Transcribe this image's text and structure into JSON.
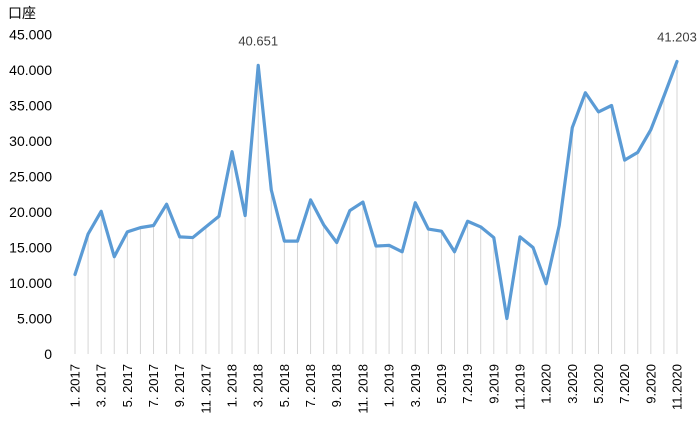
{
  "chart_data": {
    "type": "line",
    "title": "",
    "xlabel": "",
    "ylabel": "",
    "y_unit_label": "口座",
    "ylim": [
      0,
      45000
    ],
    "y_ticks": [
      0,
      5000,
      10000,
      15000,
      20000,
      25000,
      30000,
      35000,
      40000,
      45000
    ],
    "y_tick_labels": [
      "0",
      "5.000",
      "10.000",
      "15.000",
      "20.000",
      "25.000",
      "30.000",
      "35.000",
      "40.000",
      "45.000"
    ],
    "x_tick_labels": [
      "1. 2017",
      "3. 2017",
      "5. 2017",
      "7. 2017",
      "9. 2017",
      "11 .2017",
      "1. 2018",
      "3. 2018",
      "5. 2018",
      "7. 2018",
      "9. 2018",
      "11. 2018",
      "1. 2019",
      "3. 2019",
      "5.2019",
      "7.2019",
      "9.2019",
      "11.2019",
      "1.2020",
      "3.2020",
      "5.2020",
      "7.2020",
      "9.2020",
      "11.2020"
    ],
    "grid": "vertical drop lines",
    "line_color": "#5b9bd5",
    "series": [
      {
        "name": "",
        "values": [
          11200,
          16900,
          20100,
          13700,
          17200,
          17800,
          18100,
          21100,
          16500,
          16400,
          17900,
          19400,
          28500,
          19500,
          40651,
          23100,
          15900,
          15900,
          21700,
          18200,
          15700,
          20200,
          21400,
          15200,
          15300,
          14400,
          21300,
          17600,
          17300,
          14400,
          18700,
          17900,
          16400,
          5000,
          16500,
          15000,
          9900,
          18100,
          31900,
          36800,
          34100,
          35000,
          27300,
          28400,
          31600,
          36300,
          41203
        ]
      }
    ],
    "data_labels": [
      {
        "index": 14,
        "text": "40.651"
      },
      {
        "index": 46,
        "text": "41.203"
      }
    ]
  }
}
